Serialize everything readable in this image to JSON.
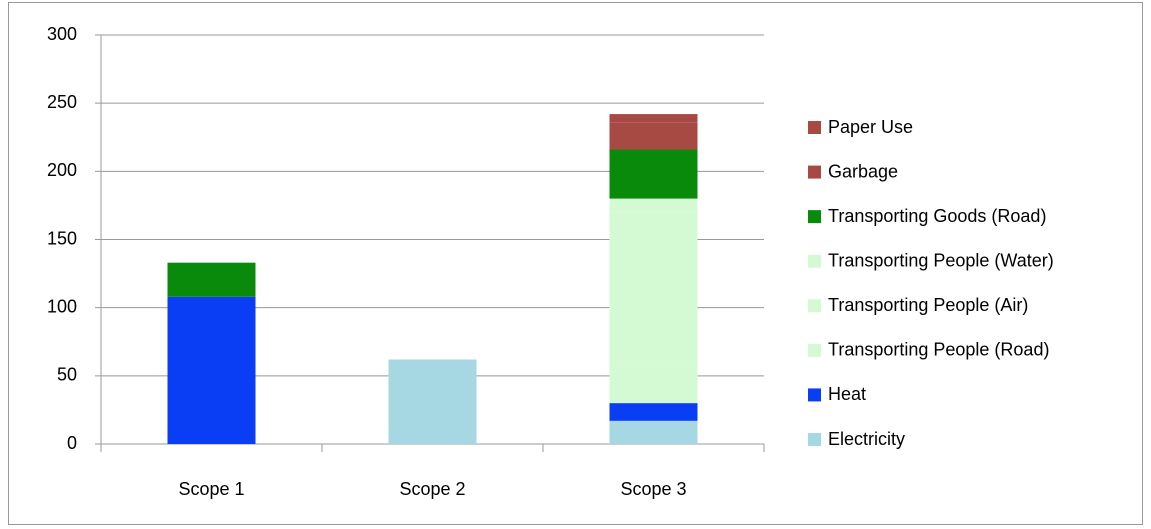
{
  "chart_data": {
    "type": "bar",
    "stacked": true,
    "categories": [
      "Scope 1",
      "Scope 2",
      "Scope 3"
    ],
    "series": [
      {
        "name": "Electricity",
        "color": "#a6d8e3",
        "values": [
          null,
          62,
          17
        ]
      },
      {
        "name": "Heat",
        "color": "#0a3ef5",
        "values": [
          108,
          null,
          13
        ]
      },
      {
        "name": "Transporting People (Road)",
        "color": "#d4fad4",
        "values": [
          null,
          null,
          30
        ]
      },
      {
        "name": "Transporting People (Air)",
        "color": "#d4fad4",
        "values": [
          null,
          null,
          110
        ]
      },
      {
        "name": "Transporting People (Water)",
        "color": "#d4fad4",
        "values": [
          null,
          null,
          10
        ]
      },
      {
        "name": "Transporting Goods (Road)",
        "color": "#0a8a0a",
        "values": [
          25,
          null,
          36
        ]
      },
      {
        "name": "Garbage",
        "color": "#a84a44",
        "values": [
          null,
          null,
          20
        ]
      },
      {
        "name": "Paper Use",
        "color": "#a84a44",
        "values": [
          null,
          null,
          6
        ]
      }
    ],
    "ylim": [
      0,
      300
    ],
    "yticks": [
      0,
      50,
      100,
      150,
      200,
      250,
      300
    ],
    "grid": true,
    "legend": "right"
  }
}
